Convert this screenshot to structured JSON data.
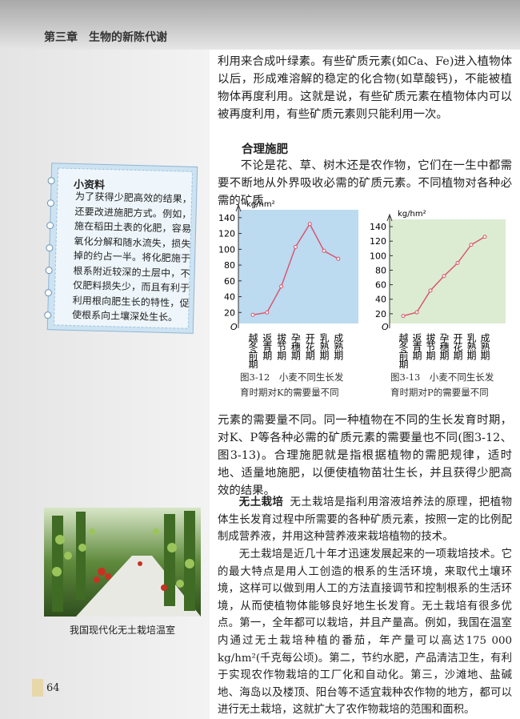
{
  "header": {
    "chapter": "第三章　生物的新陈代谢"
  },
  "paragraphs": [
    "利用来合成叶绿素。有些矿质元素(如Ca、Fe)进入植物体以后，形成难溶解的稳定的化合物(如草酸钙)，不能被植物体再度利用。这就是说，有些矿质元素在植物体内可以被再度利用，有些矿质元素则只能利用一次。",
    "不论是花、草、树木还是农作物，它们在一生中都需要不断地从外界吸收必需的矿质元素。不同植物对各种必需的矿质",
    "元素的需要量不同。同一种植物在不同的生长发育时期，对K、P等各种必需的矿质元素的需要量也不同(图3-12、图3-13)。合理施肥就是指根据植物的需肥规律，适时地、适量地施肥，以便使植物苗壮生长，并且获得少肥高效的结果。"
  ],
  "section_heading": "合理施肥",
  "sidebar": {
    "title": "小资料",
    "text": "为了获得少肥高效的结果，还要改进施肥方式。例如，施在稻田土表的化肥，容易氧化分解和随水流失，损失掉的约占一半。将化肥施于根系附近较深的土层中，不仅肥料损失少，而且有利于利用根向肥生长的特性，促使根系向土壤深处生长。"
  },
  "chart_data": [
    {
      "type": "line",
      "caption": "图3-12　小麦不同生长发育时期对K的需要量不同",
      "ylabel": "kg/hm²",
      "origin_label": "O",
      "categories": [
        "越冬前期",
        "返青期",
        "拔节期",
        "孕穗期",
        "开花期",
        "乳熟期",
        "成熟期"
      ],
      "series": [
        {
          "color": "#d9506a",
          "values": [
            17,
            20,
            53,
            103,
            132,
            98,
            88
          ]
        }
      ],
      "ylim": [
        0,
        150
      ],
      "yticks": [
        20,
        40,
        60,
        80,
        100,
        120,
        140
      ],
      "background": "#bcdaf0"
    },
    {
      "type": "line",
      "caption": "图3-13　小麦不同生长发育时期对P的需要量不同",
      "ylabel": "kg/hm²",
      "origin_label": "O",
      "categories": [
        "越冬前期",
        "返青期",
        "拔节期",
        "孕穗期",
        "开花期",
        "乳熟期",
        "成熟期"
      ],
      "series": [
        {
          "color": "#d9506a",
          "values": [
            17,
            22,
            52,
            72,
            90,
            115,
            126
          ]
        }
      ],
      "ylim": [
        0,
        150
      ],
      "yticks": [
        20,
        40,
        60,
        80,
        100,
        120,
        140
      ],
      "background": "#dcecd2"
    }
  ],
  "hydroponics": {
    "term": "无土栽培",
    "definition": "无土栽培是指利用溶液培养法的原理，把植物体生长发育过程中所需要的各种矿质元素，按照一定的比例配制成营养液，并用这种营养液来栽培植物的技术。",
    "text": "无土栽培是近几十年才迅速发展起来的一项栽培技术。它的最大特点是用人工创造的根系的生活环境，来取代土壤环境，这样可以做到用人工的方法直接调节和控制根系的生活环境，从而使植物体能够良好地生长发育。无土栽培有很多优点。第一，全年都可以栽培，并且产量高。例如，我国在温室内通过无土栽培种植的番茄，年产量可以高达175 000 kg/hm²(千克每公顷)。第二，节约水肥，产品清洁卫生，有利于实现农作物栽培的工厂化和自动化。第三，沙滩地、盐碱地、海岛以及楼顶、阳台等不适宜栽种农作物的地方，都可以进行无土栽培，这就扩大了农作物栽培的范围和面积。"
  },
  "photo": {
    "caption": "我国现代化无土栽培温室"
  },
  "page_number": "64"
}
